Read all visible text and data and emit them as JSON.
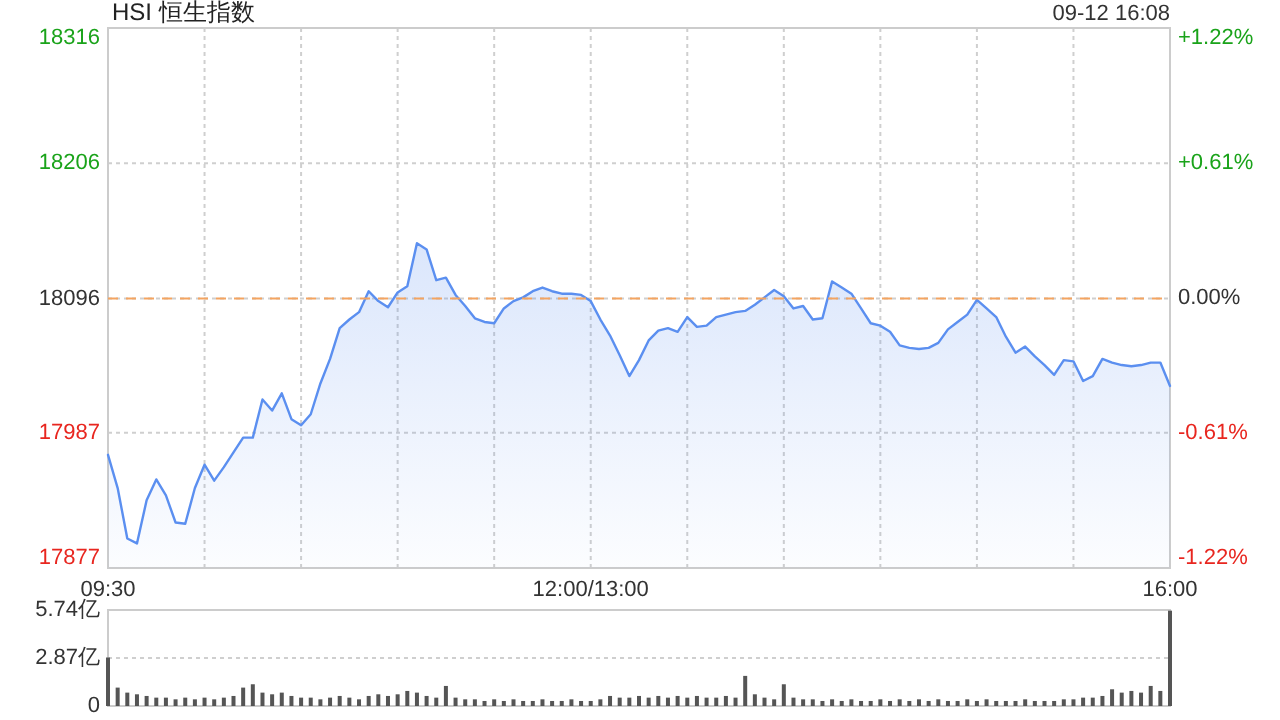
{
  "chart_data": [
    {
      "type": "area",
      "title": "HSI 恒生指数",
      "annotations": [
        "09-12 16:08"
      ],
      "categories": [
        "09:30",
        null,
        null,
        null,
        null,
        null,
        null,
        null,
        null,
        null,
        null,
        null,
        null,
        null,
        null,
        null,
        null,
        null,
        null,
        null,
        null,
        null,
        null,
        null,
        null,
        null,
        null,
        null,
        null,
        null,
        null,
        null,
        null,
        null,
        null,
        null,
        null,
        null,
        null,
        null,
        null,
        null,
        null,
        null,
        null,
        null,
        null,
        null,
        null,
        null,
        "12:00/13:00",
        null,
        null,
        null,
        null,
        null,
        null,
        null,
        null,
        null,
        null,
        null,
        null,
        null,
        null,
        null,
        null,
        null,
        null,
        null,
        null,
        null,
        null,
        null,
        null,
        null,
        null,
        null,
        null,
        null,
        null,
        null,
        null,
        null,
        null,
        null,
        null,
        null,
        null,
        null,
        null,
        null,
        null,
        null,
        null,
        null,
        null,
        null,
        null,
        null,
        null,
        null,
        null,
        null,
        null,
        null,
        null,
        null,
        null,
        null,
        "16:00"
      ],
      "ylim": [
        17877,
        18316
      ],
      "yticks": [
        17877,
        17987,
        18096,
        18206,
        18316
      ],
      "y2lim": [
        -1.22,
        1.22
      ],
      "y2ticks": [
        {
          "value": -1.22,
          "label": "-1.22%"
        },
        {
          "value": -0.61,
          "label": "-0.61%"
        },
        {
          "value": 0,
          "label": "0.00%"
        },
        {
          "value": 0.61,
          "label": "+0.61%"
        },
        {
          "value": 1.22,
          "label": "+1.22%"
        }
      ],
      "grid": true,
      "ref_lines": [
        {
          "axis": "y",
          "value": 18096,
          "label": null,
          "color": "#f4a460",
          "line_style": "dashed"
        }
      ],
      "series": [
        {
          "color": "#5b8ff0",
          "values": [
            17969,
            17942,
            17901,
            17897,
            17932,
            17949,
            17936,
            17914,
            17913,
            17942,
            17961,
            17948,
            17959,
            17971,
            17983,
            17983,
            18014,
            18005,
            18019,
            17998,
            17993,
            18002,
            18027,
            18047,
            18072,
            18079,
            18085,
            18102,
            18094,
            18089,
            18101,
            18106,
            18141,
            18136,
            18111,
            18113,
            18099,
            18090,
            18080,
            18077,
            18076,
            18088,
            18094,
            18097,
            18102,
            18105,
            18102,
            18100,
            18100,
            18099,
            18094,
            18079,
            18066,
            18050,
            18033,
            18046,
            18062,
            18070,
            18072,
            18069,
            18081,
            18073,
            18074,
            18081,
            18083,
            18085,
            18086,
            18091,
            18097,
            18103,
            18098,
            18088,
            18090,
            18079,
            18080,
            18110,
            18105,
            18100,
            18088,
            18076,
            18074,
            18069,
            18058,
            18056,
            18055,
            18056,
            18060,
            18071,
            18077,
            18083,
            18095,
            18088,
            18081,
            18065,
            18052,
            18057,
            18049,
            18042,
            18034,
            18046,
            18045,
            18029,
            18033,
            18047,
            18044,
            18042,
            18041,
            18042,
            18044,
            18044,
            18025
          ]
        }
      ]
    },
    {
      "type": "bar",
      "categories": [
        null,
        null,
        null,
        null,
        null,
        null,
        null,
        null,
        null,
        null,
        null,
        null,
        null,
        null,
        null,
        null,
        null,
        null,
        null,
        null,
        null,
        null,
        null,
        null,
        null,
        null,
        null,
        null,
        null,
        null,
        null,
        null,
        null,
        null,
        null,
        null,
        null,
        null,
        null,
        null,
        null,
        null,
        null,
        null,
        null,
        null,
        null,
        null,
        null,
        null,
        null,
        null,
        null,
        null,
        null,
        null,
        null,
        null,
        null,
        null,
        null,
        null,
        null,
        null,
        null,
        null,
        null,
        null,
        null,
        null,
        null,
        null,
        null,
        null,
        null,
        null,
        null,
        null,
        null,
        null,
        null,
        null,
        null,
        null,
        null,
        null,
        null,
        null,
        null,
        null,
        null,
        null,
        null,
        null,
        null,
        null,
        null,
        null,
        null,
        null,
        null,
        null,
        null,
        null,
        null,
        null,
        null,
        null,
        null,
        null,
        null
      ],
      "ylim": [
        0,
        5.74
      ],
      "yticks": [
        0,
        {
          "value": 2.87,
          "label": "2.87亿"
        },
        {
          "value": 5.74,
          "label": "5.74亿"
        }
      ],
      "grid": "y",
      "tick_labels": "y",
      "series": [
        {
          "color": "#555555",
          "values": [
            2.9,
            1.1,
            0.8,
            0.7,
            0.6,
            0.5,
            0.5,
            0.4,
            0.5,
            0.4,
            0.5,
            0.4,
            0.5,
            0.6,
            1.1,
            1.3,
            0.8,
            0.7,
            0.8,
            0.6,
            0.5,
            0.5,
            0.4,
            0.5,
            0.6,
            0.5,
            0.4,
            0.6,
            0.7,
            0.6,
            0.7,
            0.9,
            0.8,
            0.6,
            0.5,
            1.2,
            0.5,
            0.4,
            0.4,
            0.3,
            0.4,
            0.3,
            0.4,
            0.3,
            0.3,
            0.4,
            0.3,
            0.3,
            0.4,
            0.3,
            0.3,
            0.4,
            0.6,
            0.5,
            0.5,
            0.6,
            0.5,
            0.6,
            0.5,
            0.6,
            0.5,
            0.6,
            0.5,
            0.5,
            0.6,
            0.5,
            1.8,
            0.7,
            0.5,
            0.4,
            1.3,
            0.5,
            0.4,
            0.4,
            0.3,
            0.4,
            0.3,
            0.4,
            0.3,
            0.3,
            0.4,
            0.3,
            0.4,
            0.3,
            0.4,
            0.3,
            0.4,
            0.3,
            0.3,
            0.4,
            0.3,
            0.4,
            0.3,
            0.3,
            0.3,
            0.4,
            0.3,
            0.3,
            0.3,
            0.4,
            0.4,
            0.5,
            0.5,
            0.6,
            1.0,
            0.8,
            0.9,
            0.8,
            1.2,
            0.9,
            5.7
          ]
        }
      ]
    }
  ]
}
